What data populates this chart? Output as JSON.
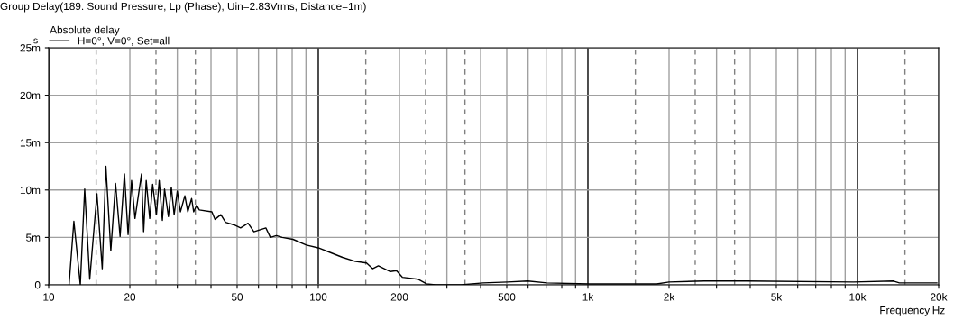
{
  "chart_data": {
    "type": "line",
    "title": "Group Delay(189. Sound Pressure, Lp (Phase), Uin=2.83Vrms, Distance=1m)",
    "xlabel": "Frequency",
    "ylabel": "s",
    "annotations": [
      "Hz"
    ],
    "legend_title": "Absolute delay",
    "legend": "top left",
    "log": "x",
    "grid": true,
    "marker": "none",
    "line_style": "solid",
    "xlim": [
      10,
      20000
    ],
    "ylim": [
      0,
      25
    ],
    "xticks": [
      10,
      20,
      {
        "value": 30,
        "label": null
      },
      {
        "value": 40,
        "label": null
      },
      50,
      {
        "value": 60,
        "label": null
      },
      {
        "value": 70,
        "label": null
      },
      {
        "value": 80,
        "label": null
      },
      {
        "value": 90,
        "label": null
      },
      100,
      200,
      {
        "value": 300,
        "label": null
      },
      {
        "value": 400,
        "label": null
      },
      500,
      {
        "value": 600,
        "label": null
      },
      {
        "value": 700,
        "label": null
      },
      {
        "value": 800,
        "label": null
      },
      {
        "value": 900,
        "label": null
      },
      {
        "value": 1000,
        "label": "1k"
      },
      {
        "value": 2000,
        "label": "2k"
      },
      {
        "value": 3000,
        "label": null
      },
      {
        "value": 4000,
        "label": null
      },
      {
        "value": 5000,
        "label": "5k"
      },
      {
        "value": 6000,
        "label": null
      },
      {
        "value": 7000,
        "label": null
      },
      {
        "value": 8000,
        "label": null
      },
      {
        "value": 9000,
        "label": null
      },
      {
        "value": 10000,
        "label": "10k"
      },
      {
        "value": 20000,
        "label": "20k"
      }
    ],
    "yticks": [
      0,
      {
        "value": 5,
        "label": "5m"
      },
      {
        "value": 10,
        "label": "10m"
      },
      {
        "value": 15,
        "label": "15m"
      },
      {
        "value": 20,
        "label": "20m"
      },
      {
        "value": 25,
        "label": "25m"
      }
    ],
    "ref_lines": [
      {
        "axis": "x",
        "value": 15,
        "label": null,
        "color": "#808080",
        "line_style": "dashed"
      },
      {
        "axis": "x",
        "value": 25,
        "label": null,
        "color": "#808080",
        "line_style": "dashed"
      },
      {
        "axis": "x",
        "value": 35,
        "label": null,
        "color": "#808080",
        "line_style": "dashed"
      },
      {
        "axis": "x",
        "value": 150,
        "label": null,
        "color": "#808080",
        "line_style": "dashed"
      },
      {
        "axis": "x",
        "value": 250,
        "label": null,
        "color": "#808080",
        "line_style": "dashed"
      },
      {
        "axis": "x",
        "value": 350,
        "label": null,
        "color": "#808080",
        "line_style": "dashed"
      },
      {
        "axis": "x",
        "value": 1500,
        "label": null,
        "color": "#808080",
        "line_style": "dashed"
      },
      {
        "axis": "x",
        "value": 2500,
        "label": null,
        "color": "#808080",
        "line_style": "dashed"
      },
      {
        "axis": "x",
        "value": 3500,
        "label": null,
        "color": "#808080",
        "line_style": "dashed"
      },
      {
        "axis": "x",
        "value": 15000,
        "label": null,
        "color": "#808080",
        "line_style": "dashed"
      }
    ],
    "series": [
      {
        "name": "H=0°, V=0°, Set=all",
        "color": "#000000",
        "x": [
          11.9,
          12.4,
          13.1,
          13.6,
          14.2,
          15.1,
          15.8,
          16.3,
          17.0,
          17.7,
          18.4,
          19.1,
          19.7,
          20.3,
          20.9,
          22.1,
          22.5,
          23.0,
          23.7,
          24.3,
          25.1,
          25.7,
          26.4,
          26.9,
          27.8,
          28.5,
          29.2,
          30.0,
          30.8,
          32.0,
          32.8,
          33.9,
          34.5,
          35.4,
          36.2,
          40.3,
          41.4,
          43.5,
          45.3,
          48.9,
          51.5,
          54.9,
          57.7,
          63.9,
          66.4,
          69.9,
          73.5,
          80.6,
          90.3,
          100,
          111,
          123,
          136,
          151,
          159,
          167,
          185,
          195,
          205,
          234,
          252,
          272,
          334,
          338,
          408,
          504,
          598,
          705,
          1013,
          1800,
          2000,
          2700,
          3870,
          9670,
          13600,
          14300,
          19700
        ],
        "values": [
          0,
          6.7,
          0,
          10.1,
          0.6,
          9.6,
          1.7,
          12.5,
          3.6,
          10.7,
          5.1,
          11.7,
          5.3,
          11.0,
          7.0,
          11.7,
          5.6,
          11.0,
          7.0,
          10.6,
          7.4,
          11.0,
          6.8,
          10.1,
          7.2,
          10.3,
          7.4,
          9.9,
          7.7,
          9.4,
          7.7,
          9.1,
          7.7,
          8.4,
          7.9,
          7.7,
          6.9,
          7.4,
          6.6,
          6.3,
          6.0,
          6.5,
          5.6,
          6.0,
          5.0,
          5.2,
          5.0,
          4.8,
          4.2,
          3.9,
          3.4,
          2.9,
          2.5,
          2.3,
          1.7,
          2.0,
          1.4,
          1.5,
          0.8,
          0.6,
          0.1,
          0,
          0,
          0.0,
          0.2,
          0.3,
          0.4,
          0.2,
          0.1,
          0.1,
          0.3,
          0.4,
          0.4,
          0.3,
          0.4,
          0.2,
          0.2
        ]
      }
    ]
  }
}
